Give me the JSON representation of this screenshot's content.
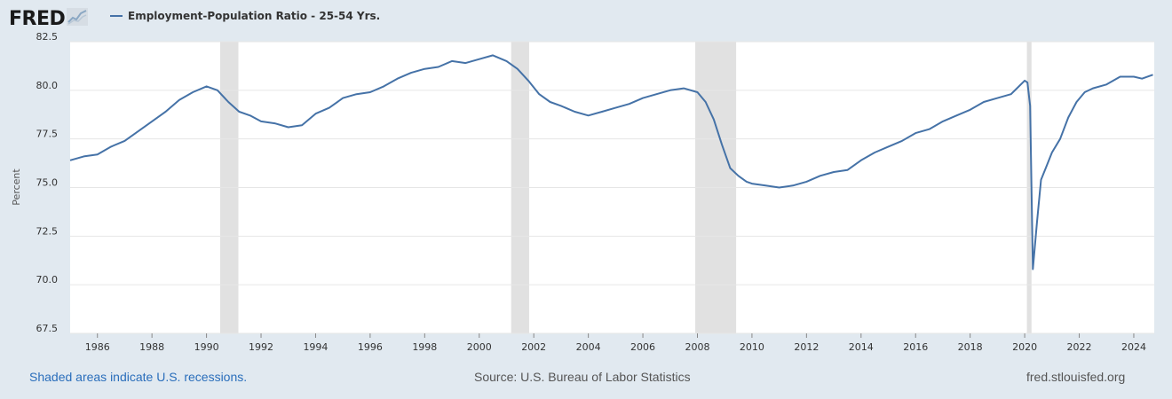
{
  "header": {
    "logo_text": "FRED",
    "logo_icon": "chart-trend-icon",
    "legend_label": "Employment-Population Ratio - 25-54 Yrs."
  },
  "footer": {
    "recession_note": "Shaded areas indicate U.S. recessions.",
    "source": "Source: U.S. Bureau of Labor Statistics",
    "url": "fred.stlouisfed.org"
  },
  "colors": {
    "line": "#4572a7",
    "recession": "#e1e1e1",
    "background": "#e1e9f0",
    "plot": "#ffffff",
    "grid": "#e6e6e6"
  },
  "chart_data": {
    "type": "line",
    "title": "",
    "xlabel": "",
    "ylabel": "Percent",
    "ylim": [
      67.5,
      82.5
    ],
    "xlim": [
      1985.0,
      2024.75
    ],
    "yticks": [
      "67.5",
      "70.0",
      "72.5",
      "75.0",
      "77.5",
      "80.0",
      "82.5"
    ],
    "xticks": [
      "1986",
      "1988",
      "1990",
      "1992",
      "1994",
      "1996",
      "1998",
      "2000",
      "2002",
      "2004",
      "2006",
      "2008",
      "2010",
      "2012",
      "2014",
      "2016",
      "2018",
      "2020",
      "2022",
      "2024"
    ],
    "grid": true,
    "recessions": [
      [
        1990.5,
        1991.17
      ],
      [
        2001.17,
        2001.83
      ],
      [
        2007.92,
        2009.42
      ],
      [
        2020.08,
        2020.25
      ]
    ],
    "series": [
      {
        "name": "Employment-Population Ratio - 25-54 Yrs.",
        "x": [
          1985.0,
          1985.5,
          1986.0,
          1986.5,
          1987.0,
          1987.5,
          1988.0,
          1988.5,
          1989.0,
          1989.5,
          1990.0,
          1990.4,
          1990.8,
          1991.2,
          1991.6,
          1992.0,
          1992.5,
          1993.0,
          1993.5,
          1994.0,
          1994.5,
          1995.0,
          1995.5,
          1996.0,
          1996.5,
          1997.0,
          1997.5,
          1998.0,
          1998.5,
          1999.0,
          1999.5,
          2000.0,
          2000.5,
          2001.0,
          2001.4,
          2001.8,
          2002.2,
          2002.6,
          2003.0,
          2003.5,
          2004.0,
          2004.5,
          2005.0,
          2005.5,
          2006.0,
          2006.5,
          2007.0,
          2007.5,
          2008.0,
          2008.3,
          2008.6,
          2008.9,
          2009.2,
          2009.5,
          2009.8,
          2010.0,
          2010.5,
          2011.0,
          2011.5,
          2012.0,
          2012.5,
          2013.0,
          2013.5,
          2014.0,
          2014.5,
          2015.0,
          2015.5,
          2016.0,
          2016.5,
          2017.0,
          2017.5,
          2018.0,
          2018.5,
          2019.0,
          2019.5,
          2020.0,
          2020.1,
          2020.2,
          2020.3,
          2020.45,
          2020.6,
          2020.8,
          2021.0,
          2021.3,
          2021.6,
          2021.9,
          2022.2,
          2022.5,
          2023.0,
          2023.5,
          2024.0,
          2024.3,
          2024.7
        ],
        "values": [
          76.4,
          76.6,
          76.7,
          77.1,
          77.4,
          77.9,
          78.4,
          78.9,
          79.5,
          79.9,
          80.2,
          80.0,
          79.4,
          78.9,
          78.7,
          78.4,
          78.3,
          78.1,
          78.2,
          78.8,
          79.1,
          79.6,
          79.8,
          79.9,
          80.2,
          80.6,
          80.9,
          81.1,
          81.2,
          81.5,
          81.4,
          81.6,
          81.8,
          81.5,
          81.1,
          80.5,
          79.8,
          79.4,
          79.2,
          78.9,
          78.7,
          78.9,
          79.1,
          79.3,
          79.6,
          79.8,
          80.0,
          80.1,
          79.9,
          79.4,
          78.5,
          77.2,
          76.0,
          75.6,
          75.3,
          75.2,
          75.1,
          75.0,
          75.1,
          75.3,
          75.6,
          75.8,
          75.9,
          76.4,
          76.8,
          77.1,
          77.4,
          77.8,
          78.0,
          78.4,
          78.7,
          79.0,
          79.4,
          79.6,
          79.8,
          80.5,
          80.4,
          79.2,
          70.8,
          73.2,
          75.4,
          76.1,
          76.8,
          77.5,
          78.6,
          79.4,
          79.9,
          80.1,
          80.3,
          80.7,
          80.7,
          80.6,
          80.8
        ]
      }
    ]
  }
}
